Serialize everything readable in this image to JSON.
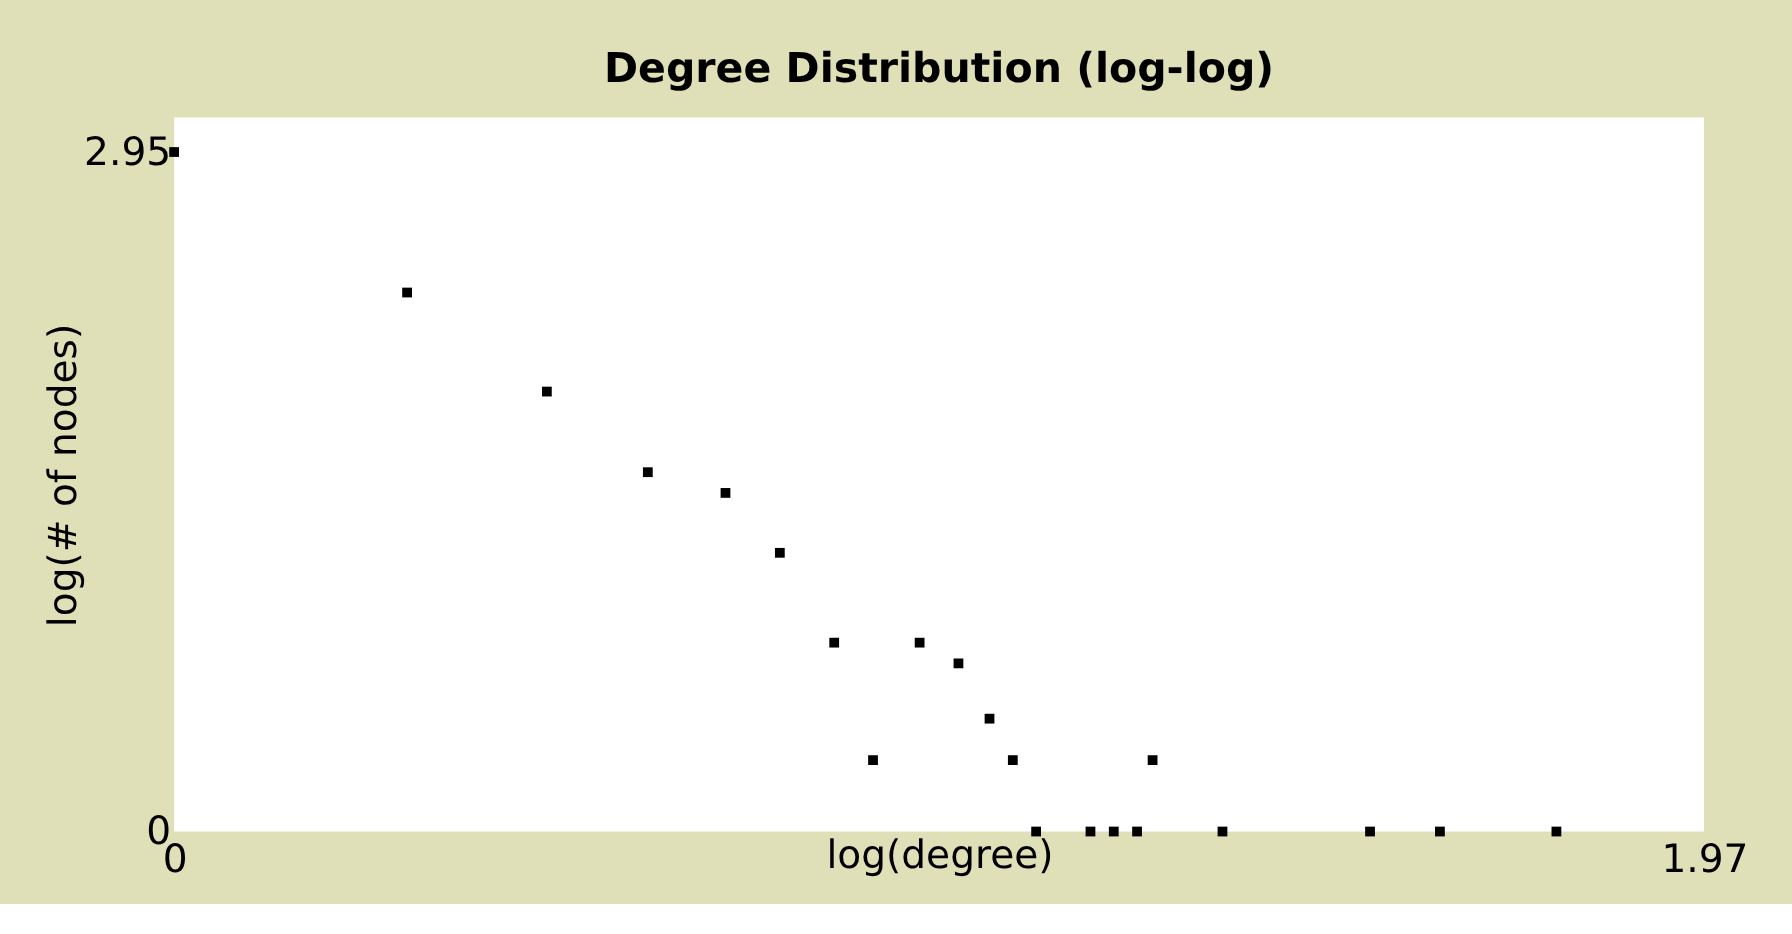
{
  "chart_data": {
    "type": "scatter",
    "title": "Degree Distribution (log-log)",
    "xlabel": "log(degree)",
    "ylabel": "log(# of nodes)",
    "x": [
      0,
      0.3,
      0.48,
      0.61,
      0.71,
      0.78,
      0.85,
      0.9,
      0.96,
      1.01,
      1.05,
      1.08,
      1.11,
      1.18,
      1.21,
      1.24,
      1.26,
      1.35,
      1.54,
      1.63,
      1.78
    ],
    "series": [
      {
        "color": "#000000",
        "values": [
          2.95,
          2.34,
          1.91,
          1.56,
          1.47,
          1.21,
          0.82,
          0.31,
          0.82,
          0.73,
          0.49,
          0.31,
          0,
          0,
          0,
          0,
          0.31,
          0,
          0,
          0,
          0
        ]
      }
    ],
    "xlim": [
      0,
      1.97
    ],
    "xticks": [
      0,
      1.97
    ],
    "ylim": [
      0,
      3.1
    ],
    "yticks": [
      0,
      2.95
    ],
    "grid": false,
    "legend": false,
    "marker": "square"
  }
}
